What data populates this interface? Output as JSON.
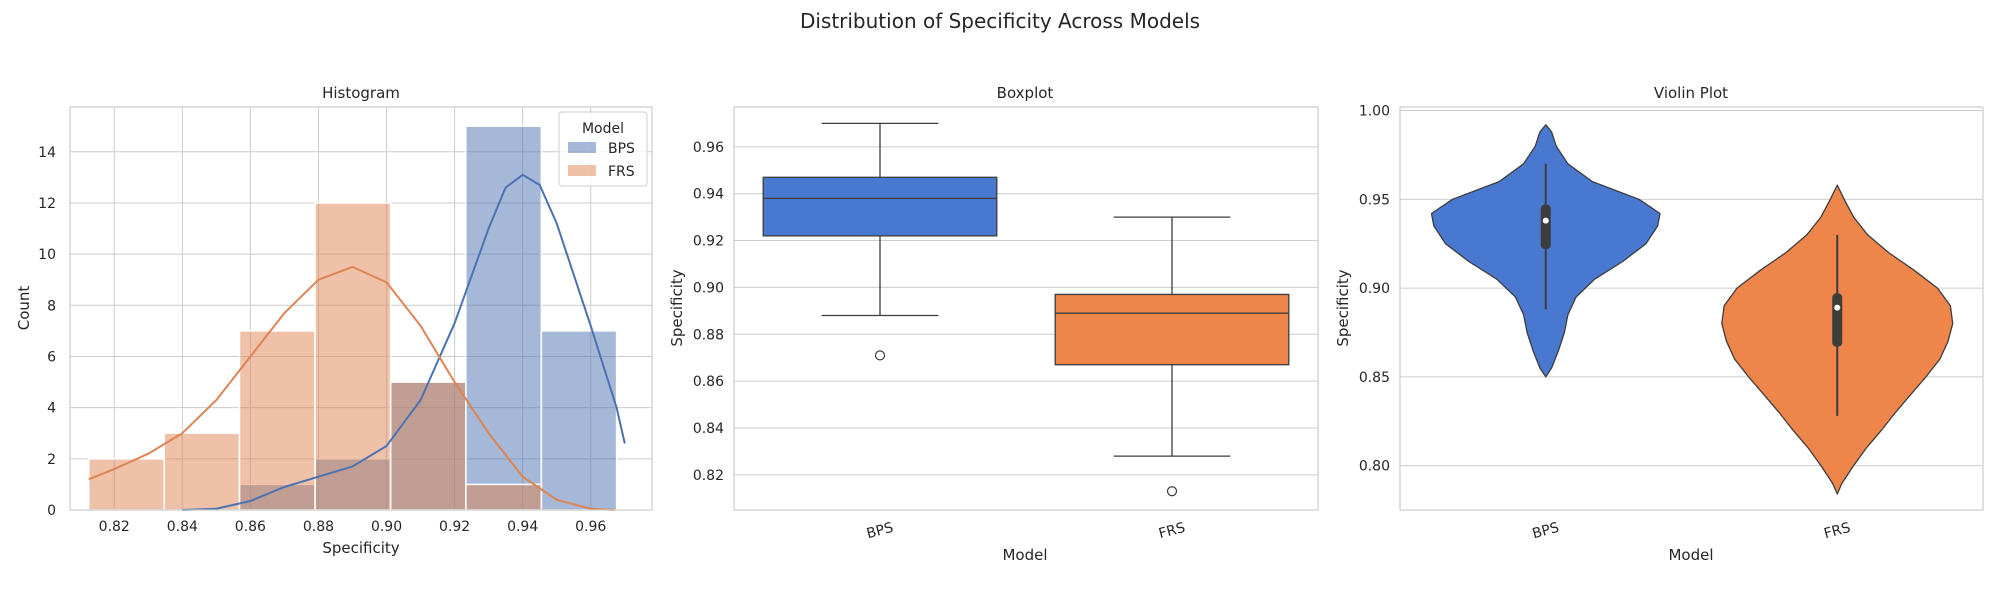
{
  "figure": {
    "title": "Distribution of Specificity Across Models"
  },
  "colors": {
    "BPS": "#4c72b0",
    "FRS": "#dd8452",
    "box_BPS": "#4878d0",
    "box_FRS": "#ee854a",
    "grid": "#cccccc",
    "frame": "#cccccc"
  },
  "chart_data": [
    {
      "type": "histogram",
      "title": "Histogram",
      "xlabel": "Specificity",
      "ylabel": "Count",
      "xlim": [
        0.807,
        0.978
      ],
      "ylim": [
        0,
        15.75
      ],
      "xticks": [
        0.82,
        0.84,
        0.86,
        0.88,
        0.9,
        0.92,
        0.94,
        0.96
      ],
      "xtick_labels": [
        "0.82",
        "0.84",
        "0.86",
        "0.88",
        "0.90",
        "0.92",
        "0.94",
        "0.96"
      ],
      "yticks": [
        0,
        2,
        4,
        6,
        8,
        10,
        12,
        14
      ],
      "ytick_labels": [
        "0",
        "2",
        "4",
        "6",
        "8",
        "10",
        "12",
        "14"
      ],
      "legend": {
        "title": "Model",
        "position": "top-right",
        "entries": [
          "BPS",
          "FRS"
        ]
      },
      "grid": true,
      "bin_edges": [
        0.8125,
        0.8347,
        0.8568,
        0.879,
        0.9012,
        0.9233,
        0.9455,
        0.9676
      ],
      "series": [
        {
          "name": "BPS",
          "counts": [
            0,
            0,
            1,
            2,
            5,
            15,
            7
          ],
          "kde": [
            [
              0.84,
              0.0
            ],
            [
              0.85,
              0.05
            ],
            [
              0.86,
              0.35
            ],
            [
              0.87,
              0.9
            ],
            [
              0.88,
              1.3
            ],
            [
              0.89,
              1.7
            ],
            [
              0.9,
              2.5
            ],
            [
              0.91,
              4.3
            ],
            [
              0.92,
              7.3
            ],
            [
              0.93,
              11.0
            ],
            [
              0.935,
              12.6
            ],
            [
              0.94,
              13.1
            ],
            [
              0.945,
              12.7
            ],
            [
              0.95,
              11.2
            ],
            [
              0.96,
              7.2
            ],
            [
              0.9676,
              4.0
            ],
            [
              0.97,
              2.6
            ]
          ]
        },
        {
          "name": "FRS",
          "counts": [
            2,
            3,
            7,
            12,
            5,
            1,
            0
          ],
          "kde": [
            [
              0.8125,
              1.2
            ],
            [
              0.82,
              1.6
            ],
            [
              0.83,
              2.2
            ],
            [
              0.84,
              3.0
            ],
            [
              0.85,
              4.3
            ],
            [
              0.86,
              6.0
            ],
            [
              0.87,
              7.7
            ],
            [
              0.88,
              9.0
            ],
            [
              0.89,
              9.5
            ],
            [
              0.9,
              8.9
            ],
            [
              0.91,
              7.2
            ],
            [
              0.92,
              5.0
            ],
            [
              0.93,
              3.0
            ],
            [
              0.94,
              1.3
            ],
            [
              0.95,
              0.4
            ],
            [
              0.96,
              0.05
            ],
            [
              0.967,
              0.0
            ]
          ]
        }
      ]
    },
    {
      "type": "box",
      "title": "Boxplot",
      "xlabel": "Model",
      "ylabel": "Specificity",
      "categories": [
        "BPS",
        "FRS"
      ],
      "ylim": [
        0.805,
        0.977
      ],
      "yticks": [
        0.82,
        0.84,
        0.86,
        0.88,
        0.9,
        0.92,
        0.94,
        0.96
      ],
      "ytick_labels": [
        "0.82",
        "0.84",
        "0.86",
        "0.88",
        "0.90",
        "0.92",
        "0.94",
        "0.96"
      ],
      "grid": true,
      "boxes": [
        {
          "name": "BPS",
          "whislo": 0.888,
          "q1": 0.922,
          "med": 0.938,
          "q3": 0.947,
          "whishi": 0.97,
          "fliers": [
            0.871
          ]
        },
        {
          "name": "FRS",
          "whislo": 0.828,
          "q1": 0.867,
          "med": 0.889,
          "q3": 0.897,
          "whishi": 0.93,
          "fliers": [
            0.813
          ]
        }
      ]
    },
    {
      "type": "violin",
      "title": "Violin Plot",
      "xlabel": "Model",
      "ylabel": "Specificity",
      "categories": [
        "BPS",
        "FRS"
      ],
      "ylim": [
        0.775,
        1.002
      ],
      "yticks": [
        0.8,
        0.85,
        0.9,
        0.95,
        1.0
      ],
      "ytick_labels": [
        "0.80",
        "0.85",
        "0.90",
        "0.95",
        "1.00"
      ],
      "grid": true,
      "violins": [
        {
          "name": "BPS",
          "q1": 0.922,
          "med": 0.938,
          "q3": 0.947,
          "whislo": 0.888,
          "whishi": 0.97,
          "profile": [
            [
              0.85,
              0.0
            ],
            [
              0.855,
              0.05
            ],
            [
              0.865,
              0.11
            ],
            [
              0.875,
              0.16
            ],
            [
              0.885,
              0.19
            ],
            [
              0.895,
              0.26
            ],
            [
              0.905,
              0.42
            ],
            [
              0.915,
              0.66
            ],
            [
              0.925,
              0.86
            ],
            [
              0.935,
              0.96
            ],
            [
              0.942,
              0.98
            ],
            [
              0.95,
              0.8
            ],
            [
              0.96,
              0.4
            ],
            [
              0.97,
              0.19
            ],
            [
              0.98,
              0.09
            ],
            [
              0.988,
              0.05
            ],
            [
              0.992,
              0.0
            ]
          ]
        },
        {
          "name": "FRS",
          "q1": 0.867,
          "med": 0.889,
          "q3": 0.897,
          "whislo": 0.828,
          "whishi": 0.93,
          "profile": [
            [
              0.784,
              0.0
            ],
            [
              0.79,
              0.04
            ],
            [
              0.8,
              0.14
            ],
            [
              0.81,
              0.25
            ],
            [
              0.82,
              0.38
            ],
            [
              0.83,
              0.5
            ],
            [
              0.84,
              0.63
            ],
            [
              0.85,
              0.76
            ],
            [
              0.86,
              0.88
            ],
            [
              0.87,
              0.95
            ],
            [
              0.88,
              0.99
            ],
            [
              0.89,
              0.97
            ],
            [
              0.9,
              0.86
            ],
            [
              0.91,
              0.66
            ],
            [
              0.92,
              0.44
            ],
            [
              0.93,
              0.26
            ],
            [
              0.94,
              0.14
            ],
            [
              0.95,
              0.06
            ],
            [
              0.958,
              0.0
            ]
          ]
        }
      ]
    }
  ]
}
